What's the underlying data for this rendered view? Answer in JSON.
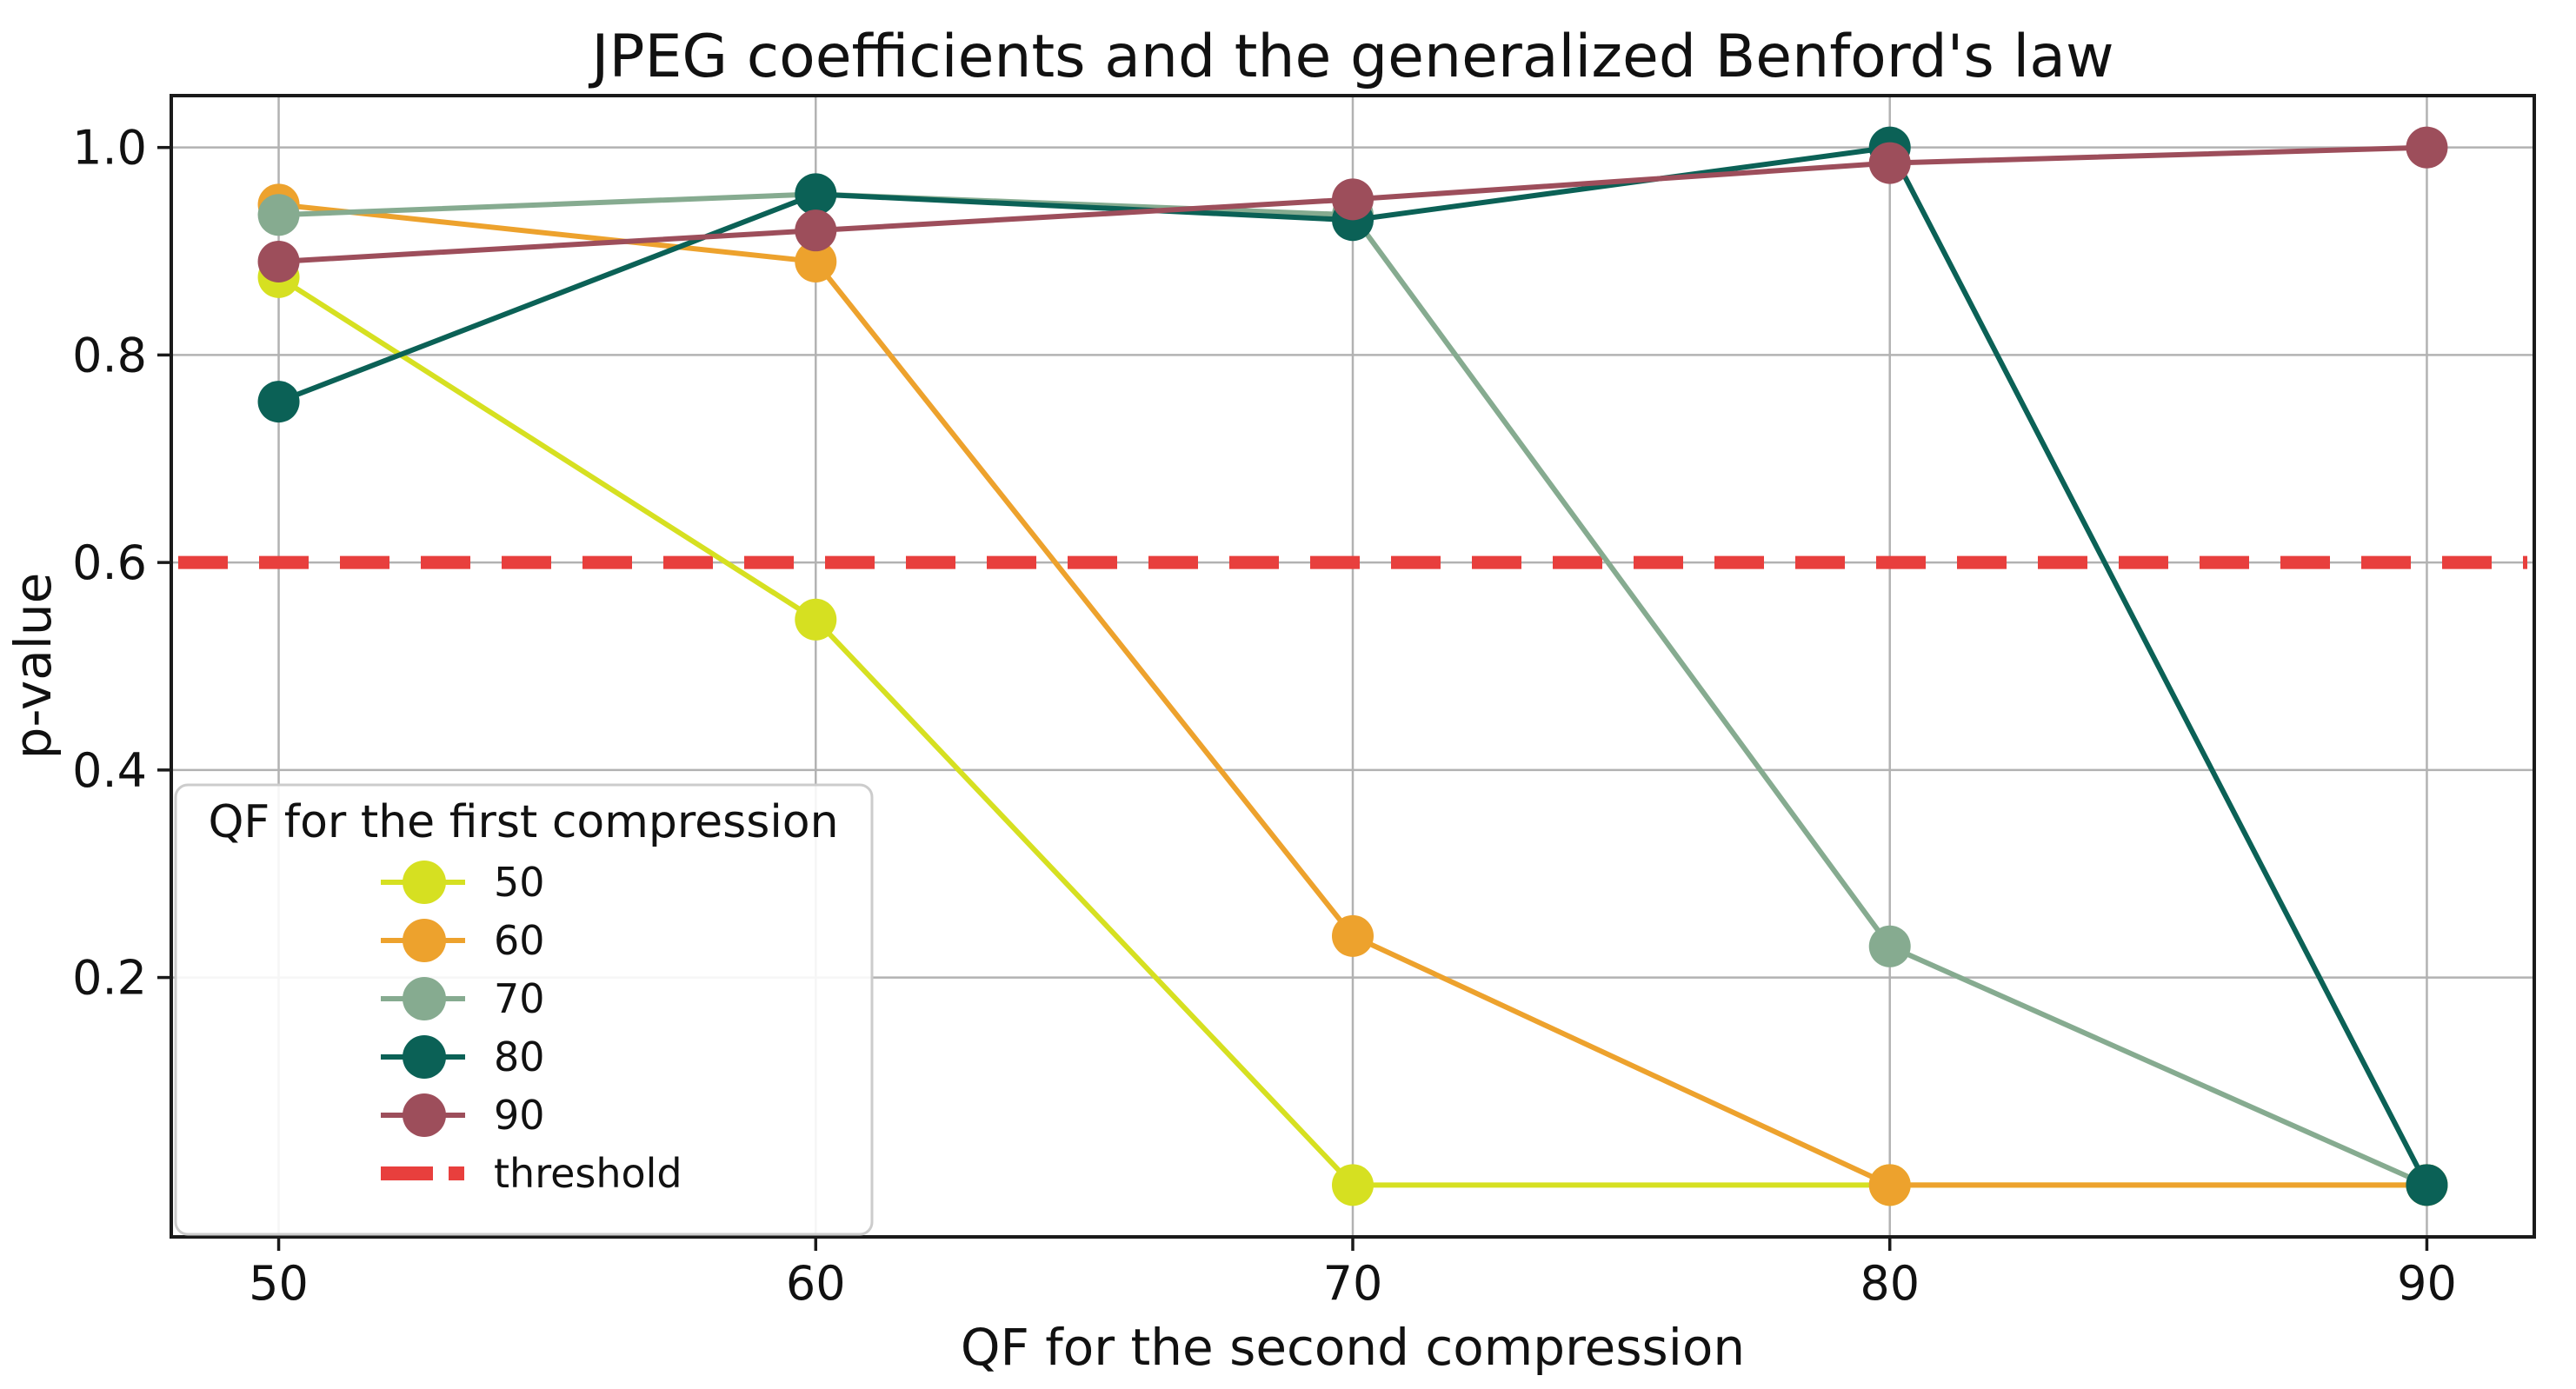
{
  "chart_data": {
    "type": "line",
    "title": "JPEG coefficients and the generalized Benford's law",
    "xlabel": "QF for the second compression",
    "ylabel": "p-value",
    "x": [
      50,
      60,
      70,
      80,
      90
    ],
    "xticks": [
      50,
      60,
      70,
      80,
      90
    ],
    "yticks": [
      0.2,
      0.4,
      0.6,
      0.8,
      1.0
    ],
    "xlim": [
      48,
      92
    ],
    "ylim": [
      -0.05,
      1.05
    ],
    "grid": true,
    "legend": {
      "title": "QF for the first compression",
      "position": "lower-left"
    },
    "series": [
      {
        "name": "50",
        "color": "#d6e021",
        "values": [
          0.875,
          0.545,
          0.0,
          0.0,
          0.0
        ]
      },
      {
        "name": "60",
        "color": "#eda22d",
        "values": [
          0.945,
          0.89,
          0.24,
          0.0,
          0.0
        ]
      },
      {
        "name": "70",
        "color": "#86ab90",
        "values": [
          0.935,
          0.955,
          0.935,
          0.23,
          0.0
        ]
      },
      {
        "name": "80",
        "color": "#0b6156",
        "values": [
          0.755,
          0.955,
          0.93,
          1.0,
          0.0
        ]
      },
      {
        "name": "90",
        "color": "#9d4e5b",
        "values": [
          0.89,
          0.92,
          0.95,
          0.985,
          1.0
        ]
      }
    ],
    "threshold": {
      "label": "threshold",
      "value": 0.6,
      "color": "#e83f3d",
      "style": "dashed"
    }
  },
  "style": {
    "grid_color": "#b2b2b2",
    "spine_color": "#1a1a1a",
    "legend_border_color": "#cccccc",
    "legend_bg_color": "#ffffff"
  }
}
